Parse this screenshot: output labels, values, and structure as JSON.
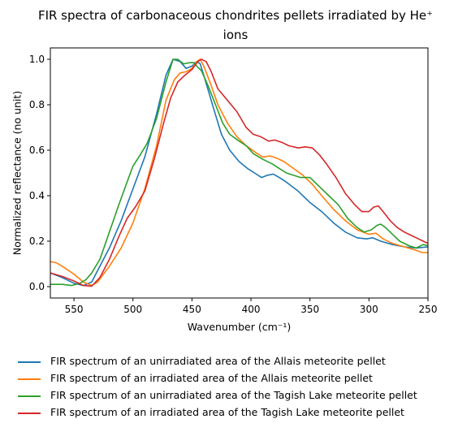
{
  "chart_data": {
    "type": "line",
    "title_line1": "FIR spectra of carbonaceous chondrites pellets irradiated by He⁺",
    "title_line2": "ions",
    "xlabel": "Wavenumber (cm⁻¹)",
    "ylabel": "Normalized reflectance (no unit)",
    "xlim": [
      570,
      250
    ],
    "ylim": [
      -0.05,
      1.05
    ],
    "x_ticks": [
      550,
      500,
      450,
      400,
      350,
      300,
      250
    ],
    "y_ticks": [
      0.0,
      0.2,
      0.4,
      0.6,
      0.8,
      1.0
    ],
    "y_tick_labels": [
      "0.0",
      "0.2",
      "0.4",
      "0.6",
      "0.8",
      "1.0"
    ],
    "legend_position": "below",
    "series": [
      {
        "name": "FIR spectrum of an unirradiated area of the Allais meteorite pellet",
        "color": "#1f77b4",
        "points": [
          [
            570,
            0.06
          ],
          [
            560,
            0.04
          ],
          [
            550,
            0.015
          ],
          [
            542,
            0.005
          ],
          [
            535,
            0.02
          ],
          [
            530,
            0.07
          ],
          [
            520,
            0.17
          ],
          [
            510,
            0.29
          ],
          [
            500,
            0.43
          ],
          [
            490,
            0.57
          ],
          [
            480,
            0.76
          ],
          [
            472,
            0.93
          ],
          [
            466,
            1.0
          ],
          [
            460,
            0.99
          ],
          [
            455,
            0.96
          ],
          [
            450,
            0.97
          ],
          [
            446,
            0.99
          ],
          [
            443,
            0.98
          ],
          [
            440,
            0.93
          ],
          [
            432,
            0.79
          ],
          [
            425,
            0.67
          ],
          [
            418,
            0.6
          ],
          [
            410,
            0.55
          ],
          [
            403,
            0.52
          ],
          [
            397,
            0.5
          ],
          [
            391,
            0.48
          ],
          [
            386,
            0.49
          ],
          [
            381,
            0.495
          ],
          [
            376,
            0.48
          ],
          [
            370,
            0.46
          ],
          [
            360,
            0.42
          ],
          [
            350,
            0.37
          ],
          [
            340,
            0.33
          ],
          [
            330,
            0.28
          ],
          [
            320,
            0.24
          ],
          [
            310,
            0.215
          ],
          [
            302,
            0.21
          ],
          [
            297,
            0.215
          ],
          [
            290,
            0.2
          ],
          [
            280,
            0.185
          ],
          [
            270,
            0.175
          ],
          [
            260,
            0.17
          ],
          [
            250,
            0.175
          ]
        ]
      },
      {
        "name": "FIR spectrum of an irradiated area of the Allais meteorite pellet",
        "color": "#ff7f0e",
        "points": [
          [
            570,
            0.11
          ],
          [
            565,
            0.105
          ],
          [
            560,
            0.09
          ],
          [
            550,
            0.055
          ],
          [
            542,
            0.02
          ],
          [
            535,
            0.005
          ],
          [
            530,
            0.02
          ],
          [
            520,
            0.09
          ],
          [
            510,
            0.17
          ],
          [
            500,
            0.28
          ],
          [
            490,
            0.43
          ],
          [
            480,
            0.62
          ],
          [
            472,
            0.82
          ],
          [
            465,
            0.91
          ],
          [
            460,
            0.94
          ],
          [
            455,
            0.945
          ],
          [
            450,
            0.96
          ],
          [
            446,
            0.99
          ],
          [
            443,
            1.0
          ],
          [
            440,
            0.97
          ],
          [
            434,
            0.89
          ],
          [
            428,
            0.8
          ],
          [
            420,
            0.72
          ],
          [
            412,
            0.66
          ],
          [
            404,
            0.62
          ],
          [
            396,
            0.59
          ],
          [
            390,
            0.57
          ],
          [
            384,
            0.575
          ],
          [
            378,
            0.565
          ],
          [
            372,
            0.55
          ],
          [
            364,
            0.52
          ],
          [
            356,
            0.49
          ],
          [
            348,
            0.45
          ],
          [
            340,
            0.4
          ],
          [
            330,
            0.34
          ],
          [
            320,
            0.29
          ],
          [
            310,
            0.25
          ],
          [
            300,
            0.23
          ],
          [
            294,
            0.235
          ],
          [
            288,
            0.21
          ],
          [
            280,
            0.19
          ],
          [
            270,
            0.175
          ],
          [
            260,
            0.16
          ],
          [
            255,
            0.15
          ],
          [
            250,
            0.15
          ]
        ]
      },
      {
        "name": "FIR spectrum of an unirradiated area of the Tagish Lake meteorite pellet",
        "color": "#2ca02c",
        "points": [
          [
            570,
            0.01
          ],
          [
            560,
            0.01
          ],
          [
            552,
            0.005
          ],
          [
            545,
            0.015
          ],
          [
            540,
            0.03
          ],
          [
            535,
            0.06
          ],
          [
            528,
            0.12
          ],
          [
            520,
            0.24
          ],
          [
            512,
            0.36
          ],
          [
            505,
            0.46
          ],
          [
            500,
            0.53
          ],
          [
            495,
            0.57
          ],
          [
            488,
            0.63
          ],
          [
            480,
            0.74
          ],
          [
            472,
            0.9
          ],
          [
            466,
            1.0
          ],
          [
            462,
            1.0
          ],
          [
            457,
            0.98
          ],
          [
            452,
            0.985
          ],
          [
            448,
            0.985
          ],
          [
            446,
            0.97
          ],
          [
            442,
            0.95
          ],
          [
            436,
            0.88
          ],
          [
            430,
            0.8
          ],
          [
            424,
            0.72
          ],
          [
            418,
            0.67
          ],
          [
            410,
            0.64
          ],
          [
            404,
            0.62
          ],
          [
            398,
            0.585
          ],
          [
            390,
            0.56
          ],
          [
            382,
            0.54
          ],
          [
            376,
            0.52
          ],
          [
            370,
            0.5
          ],
          [
            364,
            0.49
          ],
          [
            358,
            0.48
          ],
          [
            350,
            0.48
          ],
          [
            342,
            0.44
          ],
          [
            334,
            0.4
          ],
          [
            326,
            0.36
          ],
          [
            318,
            0.3
          ],
          [
            310,
            0.26
          ],
          [
            304,
            0.24
          ],
          [
            298,
            0.25
          ],
          [
            293,
            0.27
          ],
          [
            290,
            0.275
          ],
          [
            286,
            0.26
          ],
          [
            280,
            0.23
          ],
          [
            274,
            0.2
          ],
          [
            266,
            0.18
          ],
          [
            260,
            0.17
          ],
          [
            254,
            0.185
          ],
          [
            250,
            0.18
          ]
        ]
      },
      {
        "name": "FIR spectrum of an irradiated area of the Tagish Lake meteorite pellet",
        "color": "#d62728",
        "points": [
          [
            570,
            0.06
          ],
          [
            560,
            0.045
          ],
          [
            550,
            0.025
          ],
          [
            542,
            0.005
          ],
          [
            535,
            0.002
          ],
          [
            528,
            0.04
          ],
          [
            520,
            0.12
          ],
          [
            512,
            0.22
          ],
          [
            505,
            0.3
          ],
          [
            498,
            0.35
          ],
          [
            490,
            0.42
          ],
          [
            482,
            0.56
          ],
          [
            474,
            0.72
          ],
          [
            468,
            0.83
          ],
          [
            462,
            0.9
          ],
          [
            456,
            0.93
          ],
          [
            450,
            0.955
          ],
          [
            445,
            0.99
          ],
          [
            442,
            1.0
          ],
          [
            438,
            0.99
          ],
          [
            434,
            0.95
          ],
          [
            428,
            0.87
          ],
          [
            420,
            0.82
          ],
          [
            412,
            0.77
          ],
          [
            404,
            0.7
          ],
          [
            398,
            0.67
          ],
          [
            392,
            0.66
          ],
          [
            385,
            0.64
          ],
          [
            380,
            0.645
          ],
          [
            374,
            0.635
          ],
          [
            368,
            0.62
          ],
          [
            360,
            0.61
          ],
          [
            354,
            0.615
          ],
          [
            348,
            0.61
          ],
          [
            342,
            0.58
          ],
          [
            336,
            0.54
          ],
          [
            328,
            0.48
          ],
          [
            320,
            0.41
          ],
          [
            312,
            0.36
          ],
          [
            306,
            0.33
          ],
          [
            300,
            0.33
          ],
          [
            296,
            0.35
          ],
          [
            292,
            0.355
          ],
          [
            288,
            0.33
          ],
          [
            282,
            0.29
          ],
          [
            276,
            0.26
          ],
          [
            270,
            0.24
          ],
          [
            264,
            0.225
          ],
          [
            258,
            0.21
          ],
          [
            254,
            0.2
          ],
          [
            250,
            0.19
          ]
        ]
      }
    ]
  }
}
